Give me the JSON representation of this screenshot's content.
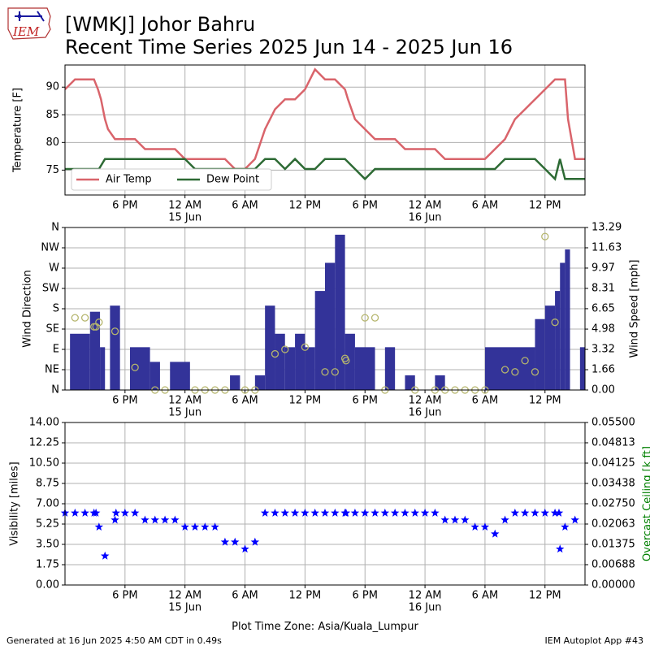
{
  "header": {
    "title_line1": "[WMKJ] Johor Bahru",
    "title_line2": "Recent Time Series 2025 Jun 14 - 2025 Jun 16",
    "logo_text": "IEM"
  },
  "footer": {
    "generated": "Generated at 16 Jun 2025 4:50 AM CDT in 0.49s",
    "app": "IEM Autoplot App #43",
    "timezone": "Plot Time Zone: Asia/Kuala_Lumpur"
  },
  "colors": {
    "air_temp": "#d9646b",
    "dew_point": "#2d6a34",
    "wind_bar": "#333399",
    "wind_dir": "#b5b56d",
    "visibility": "#0000ff",
    "ceiling_label": "#008000",
    "grid": "#b0b0b0"
  },
  "chart_data": [
    {
      "type": "line",
      "ylabel": "Temperature [F]",
      "ylim": [
        70.5,
        94
      ],
      "yticks": [
        75,
        80,
        85,
        90
      ],
      "xlim": [
        0,
        52
      ],
      "xticks": [
        6,
        12,
        18,
        24,
        30,
        36,
        42,
        48
      ],
      "xtick_labels": [
        "6 PM",
        "12 AM",
        "6 AM",
        "12 PM",
        "6 PM",
        "12 AM",
        "6 AM",
        "12 PM"
      ],
      "date_labels": [
        {
          "at": 12,
          "text": "15 Jun"
        },
        {
          "at": 36,
          "text": "16 Jun"
        }
      ],
      "grid": true,
      "legend": "lower-left",
      "series": [
        {
          "name": "Air Temp",
          "points": [
            [
              0,
              89.6
            ],
            [
              1,
              91.4
            ],
            [
              2,
              91.4
            ],
            [
              2.9,
              91.4
            ],
            [
              3.3,
              89.6
            ],
            [
              3.6,
              87.8
            ],
            [
              4,
              84.2
            ],
            [
              4.3,
              82.4
            ],
            [
              5,
              80.6
            ],
            [
              6,
              80.6
            ],
            [
              7,
              80.6
            ],
            [
              8,
              78.8
            ],
            [
              9,
              78.8
            ],
            [
              10,
              78.8
            ],
            [
              11,
              78.8
            ],
            [
              12,
              77
            ],
            [
              13,
              77
            ],
            [
              14,
              77
            ],
            [
              15,
              77
            ],
            [
              16,
              77
            ],
            [
              17,
              75.2
            ],
            [
              18,
              75.2
            ],
            [
              19,
              77
            ],
            [
              20,
              82.4
            ],
            [
              21,
              86
            ],
            [
              22,
              87.8
            ],
            [
              23,
              87.8
            ],
            [
              24,
              89.6
            ],
            [
              25,
              93.2
            ],
            [
              26,
              91.4
            ],
            [
              27,
              91.4
            ],
            [
              28,
              89.6
            ],
            [
              28.3,
              87.8
            ],
            [
              29,
              84.2
            ],
            [
              30,
              82.4
            ],
            [
              31,
              80.6
            ],
            [
              32,
              80.6
            ],
            [
              33,
              80.6
            ],
            [
              34,
              78.8
            ],
            [
              35,
              78.8
            ],
            [
              36,
              78.8
            ],
            [
              37,
              78.8
            ],
            [
              38,
              77
            ],
            [
              39,
              77
            ],
            [
              40,
              77
            ],
            [
              41,
              77
            ],
            [
              42,
              77
            ],
            [
              43,
              78.8
            ],
            [
              44,
              80.6
            ],
            [
              45,
              84.2
            ],
            [
              46,
              86
            ],
            [
              47,
              87.8
            ],
            [
              48,
              89.6
            ],
            [
              49,
              91.4
            ],
            [
              50,
              91.4
            ],
            [
              50.3,
              84.2
            ],
            [
              51,
              77
            ],
            [
              52,
              77
            ]
          ]
        },
        {
          "name": "Dew Point",
          "points": [
            [
              0,
              75.2
            ],
            [
              1,
              75.2
            ],
            [
              2,
              75.2
            ],
            [
              3,
              75.2
            ],
            [
              3.4,
              75.2
            ],
            [
              4,
              77
            ],
            [
              5,
              77
            ],
            [
              6,
              77
            ],
            [
              7,
              77
            ],
            [
              8,
              77
            ],
            [
              9,
              77
            ],
            [
              10,
              77
            ],
            [
              11,
              77
            ],
            [
              12,
              77
            ],
            [
              13,
              75.2
            ],
            [
              14,
              75.2
            ],
            [
              15,
              75.2
            ],
            [
              16,
              75.2
            ],
            [
              17,
              75.2
            ],
            [
              18,
              75.2
            ],
            [
              19,
              75.2
            ],
            [
              20,
              77
            ],
            [
              21,
              77
            ],
            [
              22,
              75.2
            ],
            [
              23,
              77
            ],
            [
              24,
              75.2
            ],
            [
              25,
              75.2
            ],
            [
              26,
              77
            ],
            [
              27,
              77
            ],
            [
              28,
              77
            ],
            [
              29,
              75.2
            ],
            [
              30,
              73.4
            ],
            [
              31,
              75.2
            ],
            [
              32,
              75.2
            ],
            [
              33,
              75.2
            ],
            [
              34,
              75.2
            ],
            [
              35,
              75.2
            ],
            [
              36,
              75.2
            ],
            [
              37,
              75.2
            ],
            [
              38,
              75.2
            ],
            [
              39,
              75.2
            ],
            [
              40,
              75.2
            ],
            [
              41,
              75.2
            ],
            [
              42,
              75.2
            ],
            [
              43,
              75.2
            ],
            [
              44,
              77
            ],
            [
              45,
              77
            ],
            [
              46,
              77
            ],
            [
              47,
              77
            ],
            [
              48,
              75.2
            ],
            [
              49,
              73.4
            ],
            [
              49.5,
              77
            ],
            [
              50,
              73.4
            ],
            [
              51,
              73.4
            ],
            [
              52,
              73.4
            ]
          ]
        }
      ]
    },
    {
      "type": "bar",
      "ylabel": "Wind Direction",
      "y2label": "Wind Speed [mph]",
      "dir_ticks": [
        "N",
        "NE",
        "E",
        "SE",
        "S",
        "SW",
        "W",
        "NW",
        "N"
      ],
      "ylim": [
        0,
        360
      ],
      "y2lim": [
        0,
        13.29
      ],
      "y2ticks": [
        0.0,
        1.66,
        3.32,
        4.98,
        6.65,
        8.31,
        9.97,
        11.63,
        13.29
      ],
      "xlim": [
        0,
        52
      ],
      "xticks": [
        6,
        12,
        18,
        24,
        30,
        36,
        42,
        48
      ],
      "xtick_labels": [
        "6 PM",
        "12 AM",
        "6 AM",
        "12 PM",
        "6 PM",
        "12 AM",
        "6 AM",
        "12 PM"
      ],
      "date_labels": [
        {
          "at": 12,
          "text": "15 Jun"
        },
        {
          "at": 36,
          "text": "16 Jun"
        }
      ],
      "grid": true,
      "speed_bars": [
        [
          0.5,
          2.5,
          4.6
        ],
        [
          2.5,
          3.5,
          6.4
        ],
        [
          3.5,
          4.0,
          3.5
        ],
        [
          4.5,
          5.5,
          6.9
        ],
        [
          6.5,
          8.5,
          3.5
        ],
        [
          8.5,
          9.5,
          2.3
        ],
        [
          10.5,
          12.5,
          2.3
        ],
        [
          16.5,
          17.5,
          1.2
        ],
        [
          19.0,
          20.0,
          1.2
        ],
        [
          20.0,
          21.0,
          6.9
        ],
        [
          21.0,
          22.0,
          4.6
        ],
        [
          22.0,
          23.0,
          3.5
        ],
        [
          23.0,
          24.0,
          4.6
        ],
        [
          24.0,
          25.0,
          3.5
        ],
        [
          25.0,
          26.0,
          8.1
        ],
        [
          26.0,
          27.0,
          10.4
        ],
        [
          27.0,
          28.0,
          12.7
        ],
        [
          28.0,
          29.0,
          4.6
        ],
        [
          29.0,
          31.0,
          3.5
        ],
        [
          32.0,
          33.0,
          3.5
        ],
        [
          34.0,
          35.0,
          1.2
        ],
        [
          37.0,
          38.0,
          1.2
        ],
        [
          42.0,
          47.0,
          3.5
        ],
        [
          47.0,
          48.0,
          5.8
        ],
        [
          48.0,
          49.0,
          6.9
        ],
        [
          49.0,
          49.5,
          8.1
        ],
        [
          49.5,
          50.0,
          10.4
        ],
        [
          50.0,
          50.5,
          11.5
        ],
        [
          51.5,
          52.0,
          3.5
        ]
      ],
      "wind_dir": [
        [
          1,
          160
        ],
        [
          2,
          160
        ],
        [
          2.9,
          140
        ],
        [
          3.1,
          140
        ],
        [
          3.4,
          150
        ],
        [
          5,
          130
        ],
        [
          7,
          50
        ],
        [
          9,
          0
        ],
        [
          10,
          0
        ],
        [
          13,
          0
        ],
        [
          14,
          0
        ],
        [
          15,
          0
        ],
        [
          16,
          0
        ],
        [
          18,
          0
        ],
        [
          19,
          0
        ],
        [
          21,
          80
        ],
        [
          22,
          90
        ],
        [
          24,
          95
        ],
        [
          26,
          40
        ],
        [
          27,
          40
        ],
        [
          28,
          70
        ],
        [
          28.1,
          65
        ],
        [
          30,
          160
        ],
        [
          31,
          160
        ],
        [
          32,
          0
        ],
        [
          35,
          0
        ],
        [
          37,
          0
        ],
        [
          38,
          0
        ],
        [
          39,
          0
        ],
        [
          40,
          0
        ],
        [
          41,
          0
        ],
        [
          42,
          0
        ],
        [
          44,
          45
        ],
        [
          45,
          40
        ],
        [
          46,
          65
        ],
        [
          47,
          40
        ],
        [
          48,
          340
        ],
        [
          49,
          150
        ]
      ]
    },
    {
      "type": "scatter",
      "ylabel": "Visibility [miles]",
      "y2label": "Overcast Ceiling [k ft]",
      "ylim": [
        0,
        14
      ],
      "yticks": [
        0.0,
        1.75,
        3.5,
        5.25,
        7.0,
        8.75,
        10.5,
        12.25,
        14.0
      ],
      "y2lim": [
        0,
        0.055
      ],
      "y2ticks": [
        0.0,
        0.00688,
        0.01375,
        0.02063,
        0.0275,
        0.03438,
        0.04125,
        0.04813,
        0.055
      ],
      "xlim": [
        0,
        52
      ],
      "xticks": [
        6,
        12,
        18,
        24,
        30,
        36,
        42,
        48
      ],
      "xtick_labels": [
        "6 PM",
        "12 AM",
        "6 AM",
        "12 PM",
        "6 PM",
        "12 AM",
        "6 AM",
        "12 PM"
      ],
      "date_labels": [
        {
          "at": 12,
          "text": "15 Jun"
        },
        {
          "at": 36,
          "text": "16 Jun"
        }
      ],
      "grid": true,
      "xlabel": "Plot Time Zone: Asia/Kuala_Lumpur",
      "visibility": [
        [
          0,
          6.2
        ],
        [
          1,
          6.2
        ],
        [
          2,
          6.2
        ],
        [
          2.9,
          6.2
        ],
        [
          3.1,
          6.2
        ],
        [
          3.4,
          5.0
        ],
        [
          4,
          2.5
        ],
        [
          5,
          5.6
        ],
        [
          5.1,
          6.2
        ],
        [
          6,
          6.2
        ],
        [
          7,
          6.2
        ],
        [
          8,
          5.6
        ],
        [
          9,
          5.6
        ],
        [
          10,
          5.6
        ],
        [
          11,
          5.6
        ],
        [
          12,
          5.0
        ],
        [
          13,
          5.0
        ],
        [
          14,
          5.0
        ],
        [
          15,
          5.0
        ],
        [
          16,
          3.7
        ],
        [
          17,
          3.7
        ],
        [
          18,
          3.1
        ],
        [
          19,
          3.7
        ],
        [
          20,
          6.2
        ],
        [
          21,
          6.2
        ],
        [
          22,
          6.2
        ],
        [
          23,
          6.2
        ],
        [
          24,
          6.2
        ],
        [
          25,
          6.2
        ],
        [
          26,
          6.2
        ],
        [
          27,
          6.2
        ],
        [
          28,
          6.2
        ],
        [
          28.1,
          6.2
        ],
        [
          29,
          6.2
        ],
        [
          30,
          6.2
        ],
        [
          31,
          6.2
        ],
        [
          32,
          6.2
        ],
        [
          33,
          6.2
        ],
        [
          34,
          6.2
        ],
        [
          35,
          6.2
        ],
        [
          36,
          6.2
        ],
        [
          37,
          6.2
        ],
        [
          38,
          5.6
        ],
        [
          39,
          5.6
        ],
        [
          40,
          5.6
        ],
        [
          41,
          5.0
        ],
        [
          42,
          5.0
        ],
        [
          43,
          4.4
        ],
        [
          44,
          5.6
        ],
        [
          45,
          6.2
        ],
        [
          46,
          6.2
        ],
        [
          47,
          6.2
        ],
        [
          48,
          6.2
        ],
        [
          49,
          6.2
        ],
        [
          49.4,
          6.2
        ],
        [
          49.5,
          3.1
        ],
        [
          50,
          5.0
        ],
        [
          51,
          5.6
        ]
      ]
    }
  ]
}
